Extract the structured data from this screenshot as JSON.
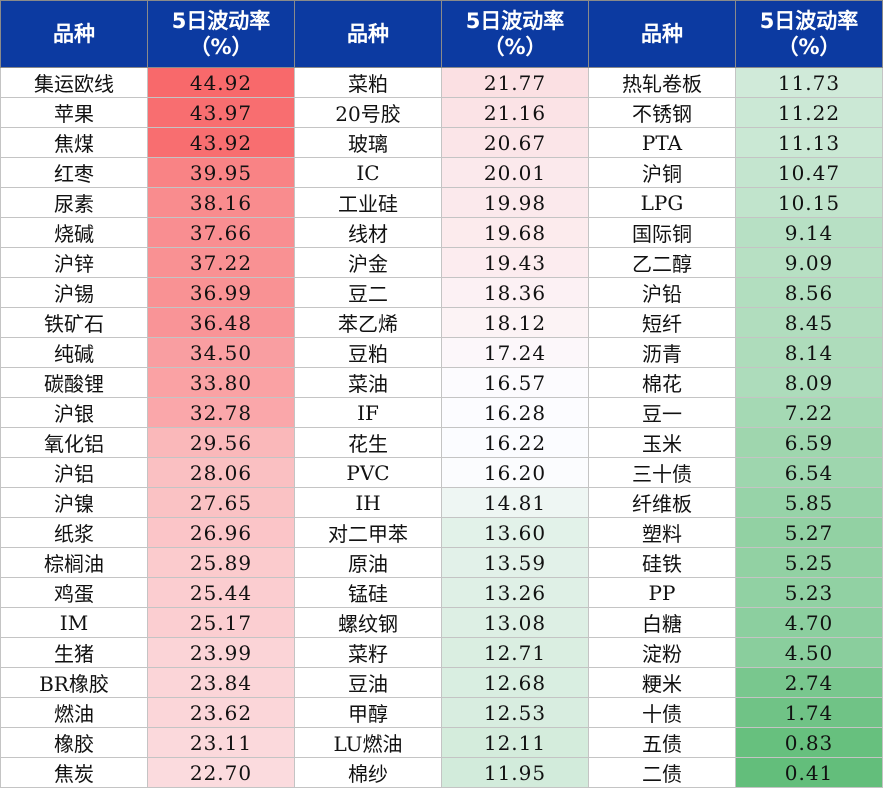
{
  "headers": {
    "name": "品种",
    "vol_line1": "5日波动率",
    "vol_line2": "（%）"
  },
  "colors": {
    "header_bg": "#0c3aa1",
    "high_volatility": "#f8696b",
    "mid_volatility": "#fcfcff",
    "low_volatility": "#63be7b"
  },
  "columns": [
    {
      "rows": [
        {
          "name": "集运欧线",
          "vol": "44.92"
        },
        {
          "name": "苹果",
          "vol": "43.97"
        },
        {
          "name": "焦煤",
          "vol": "43.92"
        },
        {
          "name": "红枣",
          "vol": "39.95"
        },
        {
          "name": "尿素",
          "vol": "38.16"
        },
        {
          "name": "烧碱",
          "vol": "37.66"
        },
        {
          "name": "沪锌",
          "vol": "37.22"
        },
        {
          "name": "沪锡",
          "vol": "36.99"
        },
        {
          "name": "铁矿石",
          "vol": "36.48"
        },
        {
          "name": "纯碱",
          "vol": "34.50"
        },
        {
          "name": "碳酸锂",
          "vol": "33.80"
        },
        {
          "name": "沪银",
          "vol": "32.78"
        },
        {
          "name": "氧化铝",
          "vol": "29.56"
        },
        {
          "name": "沪铝",
          "vol": "28.06"
        },
        {
          "name": "沪镍",
          "vol": "27.65"
        },
        {
          "name": "纸浆",
          "vol": "26.96"
        },
        {
          "name": "棕榈油",
          "vol": "25.89"
        },
        {
          "name": "鸡蛋",
          "vol": "25.44"
        },
        {
          "name": "IM",
          "vol": "25.17"
        },
        {
          "name": "生猪",
          "vol": "23.99"
        },
        {
          "name": "BR橡胶",
          "vol": "23.84"
        },
        {
          "name": "燃油",
          "vol": "23.62"
        },
        {
          "name": "橡胶",
          "vol": "23.11"
        },
        {
          "name": "焦炭",
          "vol": "22.70"
        }
      ]
    },
    {
      "rows": [
        {
          "name": "菜粕",
          "vol": "21.77"
        },
        {
          "name": "20号胶",
          "vol": "21.16"
        },
        {
          "name": "玻璃",
          "vol": "20.67"
        },
        {
          "name": "IC",
          "vol": "20.01"
        },
        {
          "name": "工业硅",
          "vol": "19.98"
        },
        {
          "name": "线材",
          "vol": "19.68"
        },
        {
          "name": "沪金",
          "vol": "19.43"
        },
        {
          "name": "豆二",
          "vol": "18.36"
        },
        {
          "name": "苯乙烯",
          "vol": "18.12"
        },
        {
          "name": "豆粕",
          "vol": "17.24"
        },
        {
          "name": "菜油",
          "vol": "16.57"
        },
        {
          "name": "IF",
          "vol": "16.28"
        },
        {
          "name": "花生",
          "vol": "16.22"
        },
        {
          "name": "PVC",
          "vol": "16.20"
        },
        {
          "name": "IH",
          "vol": "14.81"
        },
        {
          "name": "对二甲苯",
          "vol": "13.60"
        },
        {
          "name": "原油",
          "vol": "13.59"
        },
        {
          "name": "锰硅",
          "vol": "13.26"
        },
        {
          "name": "螺纹钢",
          "vol": "13.08"
        },
        {
          "name": "菜籽",
          "vol": "12.71"
        },
        {
          "name": "豆油",
          "vol": "12.68"
        },
        {
          "name": "甲醇",
          "vol": "12.53"
        },
        {
          "name": "LU燃油",
          "vol": "12.11"
        },
        {
          "name": "棉纱",
          "vol": "11.95"
        }
      ]
    },
    {
      "rows": [
        {
          "name": "热轧卷板",
          "vol": "11.73"
        },
        {
          "name": "不锈钢",
          "vol": "11.22"
        },
        {
          "name": "PTA",
          "vol": "11.13"
        },
        {
          "name": "沪铜",
          "vol": "10.47"
        },
        {
          "name": "LPG",
          "vol": "10.15"
        },
        {
          "name": "国际铜",
          "vol": "9.14"
        },
        {
          "name": "乙二醇",
          "vol": "9.09"
        },
        {
          "name": "沪铅",
          "vol": "8.56"
        },
        {
          "name": "短纤",
          "vol": "8.45"
        },
        {
          "name": "沥青",
          "vol": "8.14"
        },
        {
          "name": "棉花",
          "vol": "8.09"
        },
        {
          "name": "豆一",
          "vol": "7.22"
        },
        {
          "name": "玉米",
          "vol": "6.59"
        },
        {
          "name": "三十债",
          "vol": "6.54"
        },
        {
          "name": "纤维板",
          "vol": "5.85"
        },
        {
          "name": "塑料",
          "vol": "5.27"
        },
        {
          "name": "硅铁",
          "vol": "5.25"
        },
        {
          "name": "PP",
          "vol": "5.23"
        },
        {
          "name": "白糖",
          "vol": "4.70"
        },
        {
          "name": "淀粉",
          "vol": "4.50"
        },
        {
          "name": "粳米",
          "vol": "2.74"
        },
        {
          "name": "十债",
          "vol": "1.74"
        },
        {
          "name": "五债",
          "vol": "0.83"
        },
        {
          "name": "二债",
          "vol": "0.41"
        }
      ]
    }
  ]
}
